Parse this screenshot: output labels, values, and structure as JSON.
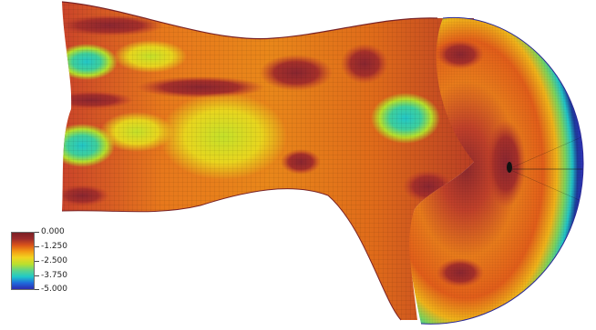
{
  "visualization": {
    "type": "surface-mesh-colormap",
    "colormap": [
      "#2e2bb0",
      "#1f6bdc",
      "#20c9c8",
      "#5cd48a",
      "#b8e02e",
      "#f2d420",
      "#f39a14",
      "#d9541a",
      "#9c2b2b",
      "#7a1f24"
    ]
  },
  "legend": {
    "labels": [
      "0.000",
      "-1.250",
      "-2.500",
      "-3.750",
      "-5.000"
    ]
  }
}
